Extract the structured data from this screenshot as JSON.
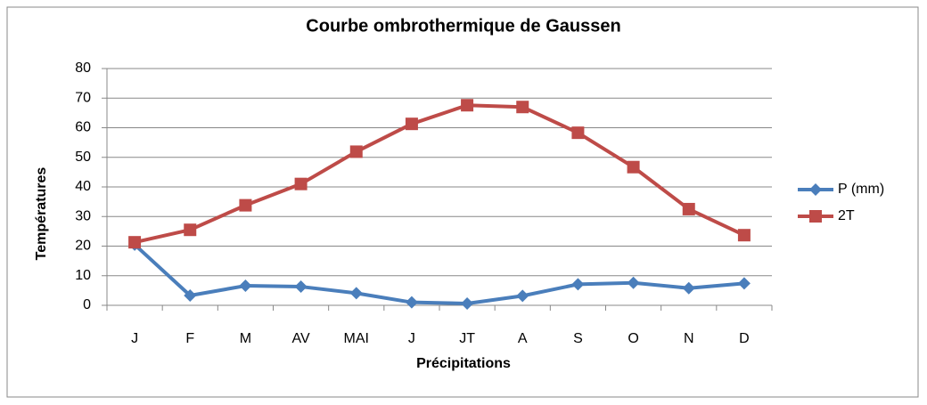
{
  "chart_data": {
    "type": "line",
    "title": "Courbe ombrothermique de Gaussen",
    "x_label": "Précipitations",
    "y_label": "Températures",
    "categories": [
      "J",
      "F",
      "M",
      "AV",
      "MAI",
      "J",
      "JT",
      "A",
      "S",
      "O",
      "N",
      "D"
    ],
    "series": [
      {
        "name": "P (mm)",
        "color": "#4a7ebb",
        "marker": "diamond",
        "values": [
          20.5,
          3.3,
          6.6,
          6.3,
          4.1,
          1,
          0.6,
          3.2,
          7.1,
          7.6,
          5.8,
          7.4
        ]
      },
      {
        "name": "2T",
        "color": "#be4b48",
        "marker": "square",
        "values": [
          21.3,
          25.5,
          33.8,
          41,
          51.9,
          61.3,
          67.6,
          67,
          58.3,
          46.7,
          32.5,
          23.7
        ]
      }
    ],
    "ylim": [
      0,
      80
    ],
    "yticks": [
      0,
      10,
      20,
      30,
      40,
      50,
      60,
      70,
      80
    ],
    "grid": true,
    "legend": "right"
  }
}
